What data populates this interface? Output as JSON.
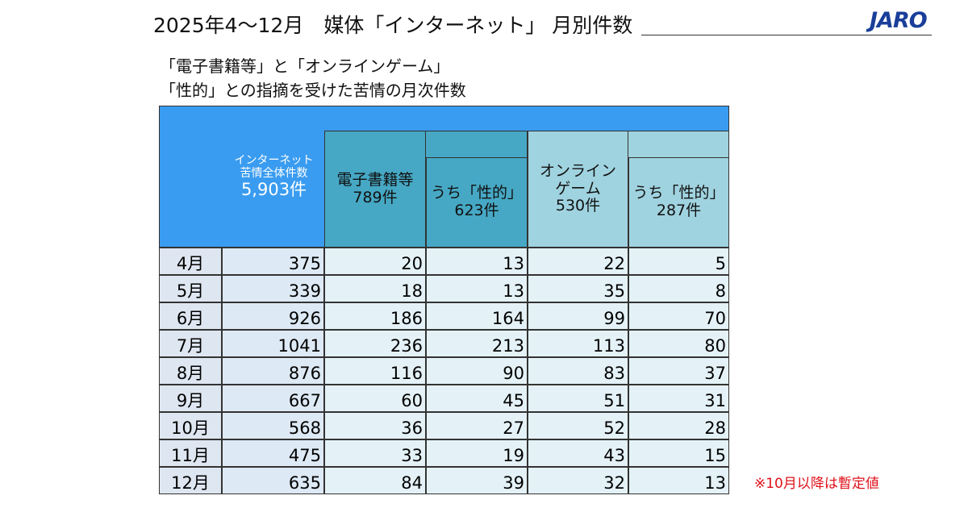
{
  "header": {
    "title": "2025年4～12月　媒体「インターネット」 月別件数",
    "logo": "JARO"
  },
  "subtitle": {
    "line1": "「電子書籍等」と「オンラインゲーム」",
    "line2": "「性的」との指摘を受けた苦情の月次件数"
  },
  "table": {
    "columns": [
      {
        "lines": [
          "インターネット",
          "苦情全体件数"
        ],
        "total": "5,903件"
      },
      {
        "lines": [
          "電子書籍等"
        ],
        "total": "789件"
      },
      {
        "lines": [
          "うち「性的」"
        ],
        "total": "623件"
      },
      {
        "lines": [
          "オンライン",
          "ゲーム"
        ],
        "total": "530件"
      },
      {
        "lines": [
          "うち「性的」"
        ],
        "total": "287件"
      }
    ],
    "rows": [
      [
        "4月",
        375,
        20,
        13,
        22,
        5
      ],
      [
        "5月",
        339,
        18,
        13,
        35,
        8
      ],
      [
        "6月",
        926,
        186,
        164,
        99,
        70
      ],
      [
        "7月",
        1041,
        236,
        213,
        113,
        80
      ],
      [
        "8月",
        876,
        116,
        90,
        83,
        37
      ],
      [
        "9月",
        667,
        60,
        45,
        51,
        31
      ],
      [
        "10月",
        568,
        36,
        27,
        52,
        28
      ],
      [
        "11月",
        475,
        33,
        19,
        43,
        15
      ],
      [
        "12月",
        635,
        84,
        39,
        32,
        13
      ]
    ]
  },
  "note": "※10月以降は暫定値"
}
